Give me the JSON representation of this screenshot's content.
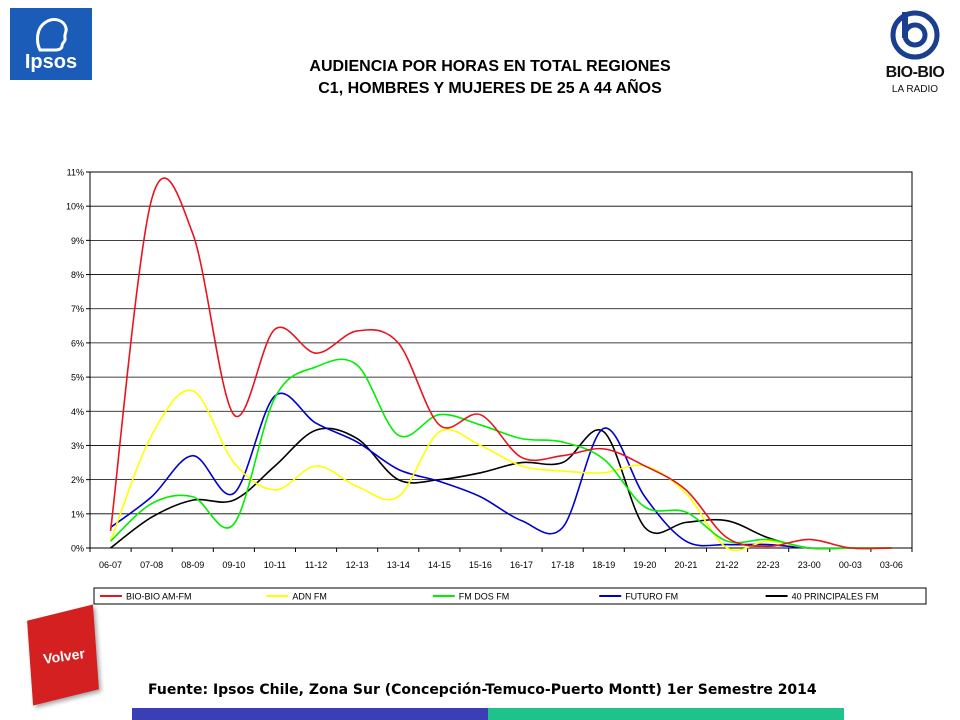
{
  "logos": {
    "ipsos": "Ipsos",
    "radio_name": "BIO-BIO",
    "radio_sub": "LA RADIO"
  },
  "title_line1": "AUDIENCIA POR HORAS EN TOTAL REGIONES",
  "title_line2": "C1, HOMBRES Y MUJERES DE 25 A 44 AÑOS",
  "source": "Fuente: Ipsos Chile, Zona Sur (Concepción-Temuco-Puerto Montt) 1er Semestre 2014",
  "volver_label": "Volver",
  "chart_data": {
    "type": "line",
    "title": "",
    "xlabel": "",
    "ylabel": "",
    "ylim": [
      0,
      11
    ],
    "yticks": [
      "0%",
      "1%",
      "2%",
      "3%",
      "4%",
      "5%",
      "6%",
      "7%",
      "8%",
      "9%",
      "10%",
      "11%"
    ],
    "grid": true,
    "legend_position": "bottom",
    "categories": [
      "06-07",
      "07-08",
      "08-09",
      "09-10",
      "10-11",
      "11-12",
      "12-13",
      "13-14",
      "14-15",
      "15-16",
      "16-17",
      "17-18",
      "18-19",
      "19-20",
      "20-21",
      "21-22",
      "22-23",
      "23-00",
      "00-03",
      "03-06"
    ],
    "series": [
      {
        "name": "BIO-BIO AM-FM",
        "color": "#e8141e",
        "values": [
          0.5,
          10.2,
          9.2,
          3.9,
          6.4,
          5.7,
          6.35,
          6.0,
          3.6,
          3.9,
          2.65,
          2.7,
          2.9,
          2.4,
          1.7,
          0.3,
          0.05,
          0.25,
          0.0,
          0.0
        ]
      },
      {
        "name": "ADN FM",
        "color": "#ffff00",
        "values": [
          0.2,
          3.3,
          4.6,
          2.5,
          1.7,
          2.4,
          1.8,
          1.5,
          3.4,
          3.0,
          2.4,
          2.25,
          2.2,
          2.4,
          1.6,
          0.0,
          0.2,
          0.0,
          0.0,
          0.0
        ]
      },
      {
        "name": "FM DOS FM",
        "color": "#00ee00",
        "values": [
          0.2,
          1.3,
          1.5,
          0.7,
          4.4,
          5.3,
          5.35,
          3.3,
          3.9,
          3.6,
          3.2,
          3.1,
          2.6,
          1.2,
          1.05,
          0.2,
          0.25,
          0.0,
          0.0,
          0.0
        ]
      },
      {
        "name": "FUTURO FM",
        "color": "#0000d0",
        "values": [
          0.6,
          1.5,
          2.7,
          1.6,
          4.45,
          3.65,
          3.1,
          2.3,
          1.95,
          1.5,
          0.8,
          0.6,
          3.5,
          1.5,
          0.2,
          0.1,
          0.1,
          0.0,
          0.0,
          0.0
        ]
      },
      {
        "name": "40 PRINCIPALES FM",
        "color": "#000000",
        "values": [
          0.0,
          0.9,
          1.4,
          1.4,
          2.4,
          3.45,
          3.2,
          2.0,
          2.0,
          2.2,
          2.5,
          2.5,
          3.4,
          0.6,
          0.75,
          0.8,
          0.3,
          0.0,
          0.0,
          0.0
        ]
      }
    ]
  }
}
